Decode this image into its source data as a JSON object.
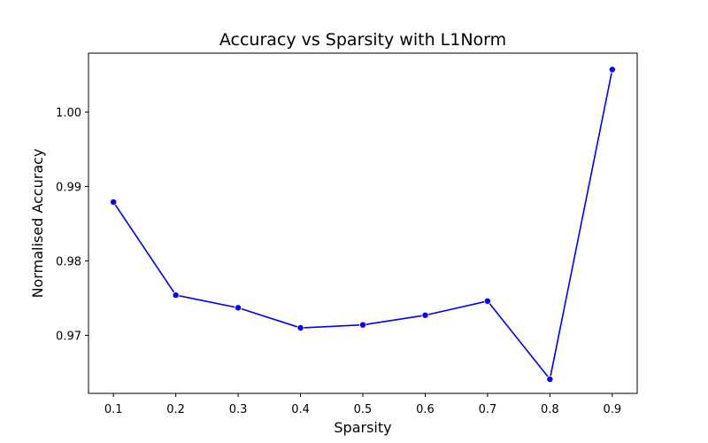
{
  "chart_data": {
    "type": "line",
    "title": "Accuracy vs Sparsity with L1Norm",
    "xlabel": "Sparsity",
    "ylabel": "Normalised Accuracy",
    "x": [
      0.1,
      0.2,
      0.3,
      0.4,
      0.5,
      0.6,
      0.7,
      0.8,
      0.9
    ],
    "series": [
      {
        "values": [
          0.9879,
          0.9754,
          0.9737,
          0.971,
          0.9714,
          0.9727,
          0.9746,
          0.9641,
          1.0057
        ],
        "color": "#0000ff",
        "marker": "circle"
      }
    ],
    "xticks": [
      "0.1",
      "0.2",
      "0.3",
      "0.4",
      "0.5",
      "0.6",
      "0.7",
      "0.8",
      "0.9"
    ],
    "yticks": [
      "0.97",
      "0.98",
      "0.99",
      "1.00"
    ],
    "xlim": [
      0.06,
      0.94
    ],
    "ylim": [
      0.9622,
      1.0079
    ],
    "grid": false,
    "legend": "none"
  }
}
